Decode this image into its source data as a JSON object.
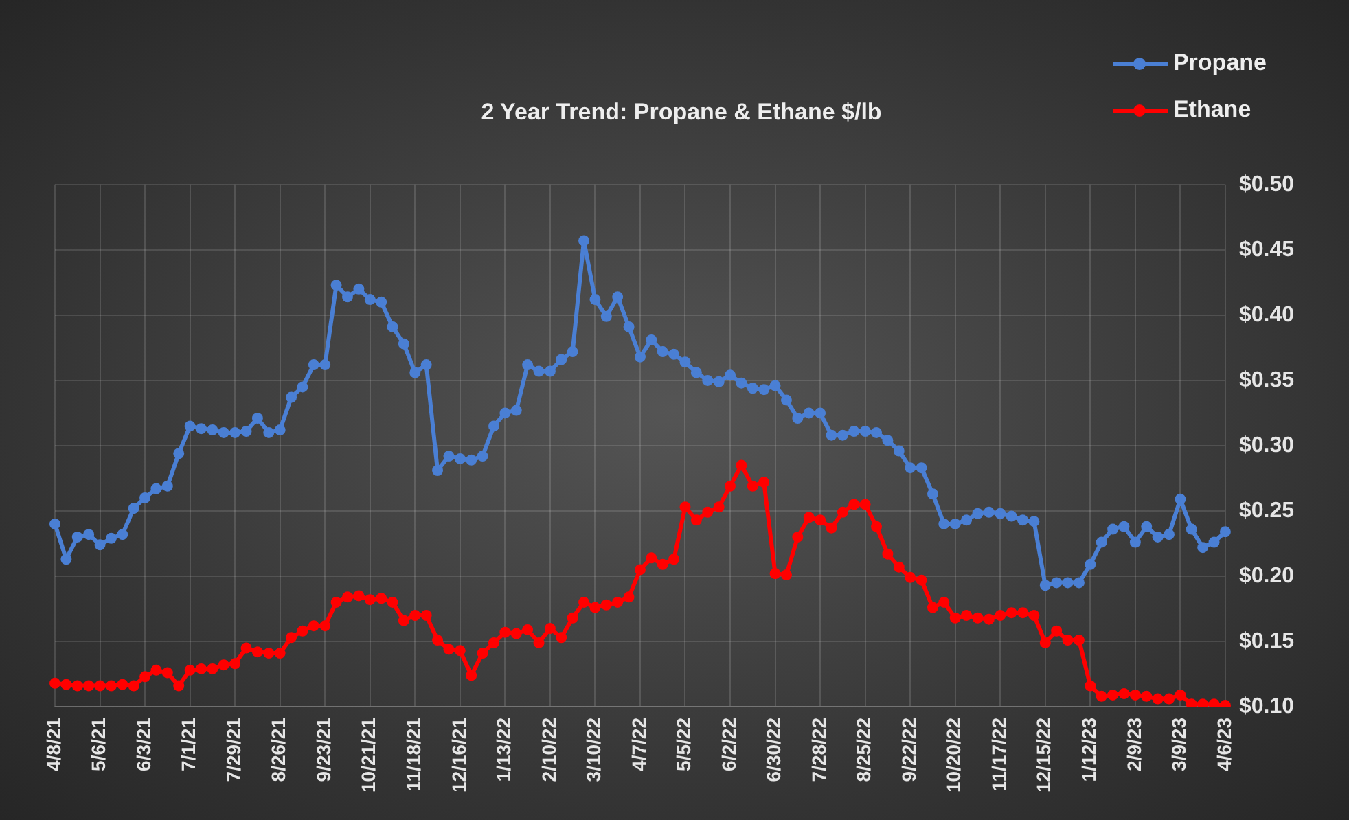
{
  "chart_data": {
    "type": "line",
    "subtitle": "2 Year Trend: Propane & Ethane $/lb",
    "categories": [
      "4/8/21",
      null,
      null,
      null,
      "5/6/21",
      null,
      null,
      null,
      "6/3/21",
      null,
      null,
      null,
      "7/1/21",
      null,
      null,
      null,
      "7/29/21",
      null,
      null,
      null,
      "8/26/21",
      null,
      null,
      null,
      "9/23/21",
      null,
      null,
      null,
      "10/21/21",
      null,
      null,
      null,
      "11/18/21",
      null,
      null,
      null,
      "12/16/21",
      null,
      null,
      null,
      "1/13/22",
      null,
      null,
      null,
      "2/10/22",
      null,
      null,
      null,
      "3/10/22",
      null,
      null,
      null,
      "4/7/22",
      null,
      null,
      null,
      "5/5/22",
      null,
      null,
      null,
      "6/2/22",
      null,
      null,
      null,
      "6/30/22",
      null,
      null,
      null,
      "7/28/22",
      null,
      null,
      null,
      "8/25/22",
      null,
      null,
      null,
      "9/22/22",
      null,
      null,
      null,
      "10/20/22",
      null,
      null,
      null,
      "11/17/22",
      null,
      null,
      null,
      "12/15/22",
      null,
      null,
      null,
      "1/12/23",
      null,
      null,
      null,
      "2/9/23",
      null,
      null,
      null,
      "3/9/23",
      null,
      null,
      null,
      "4/6/23"
    ],
    "series": [
      {
        "name": "Propane",
        "color": "#4a7fd4",
        "values": [
          0.24,
          0.213,
          0.23,
          0.232,
          0.224,
          0.229,
          0.232,
          0.252,
          0.26,
          0.267,
          0.269,
          0.294,
          0.315,
          0.313,
          0.312,
          0.31,
          0.31,
          0.311,
          0.321,
          0.31,
          0.312,
          0.337,
          0.345,
          0.362,
          0.362,
          0.423,
          0.414,
          0.42,
          0.412,
          0.41,
          0.391,
          0.378,
          0.356,
          0.362,
          0.281,
          0.292,
          0.29,
          0.289,
          0.292,
          0.315,
          0.325,
          0.327,
          0.362,
          0.357,
          0.357,
          0.366,
          0.372,
          0.457,
          0.412,
          0.399,
          0.414,
          0.391,
          0.368,
          0.381,
          0.372,
          0.37,
          0.364,
          0.356,
          0.35,
          0.349,
          0.354,
          0.348,
          0.344,
          0.343,
          0.346,
          0.335,
          0.321,
          0.325,
          0.325,
          0.308,
          0.308,
          0.311,
          0.311,
          0.31,
          0.304,
          0.296,
          0.283,
          0.283,
          0.263,
          0.24,
          0.24,
          0.243,
          0.248,
          0.249,
          0.248,
          0.246,
          0.243,
          0.242,
          0.193,
          0.195,
          0.195,
          0.195,
          0.209,
          0.226,
          0.236,
          0.238,
          0.226,
          0.238,
          0.23,
          0.232,
          0.259,
          0.236,
          0.222,
          0.226,
          0.234
        ]
      },
      {
        "name": "Ethane",
        "color": "#ff0000",
        "values": [
          0.118,
          0.117,
          0.116,
          0.116,
          0.116,
          0.116,
          0.117,
          0.116,
          0.123,
          0.128,
          0.126,
          0.116,
          0.128,
          0.129,
          0.129,
          0.132,
          0.133,
          0.145,
          0.142,
          0.141,
          0.141,
          0.153,
          0.158,
          0.162,
          0.162,
          0.18,
          0.184,
          0.185,
          0.182,
          0.183,
          0.18,
          0.166,
          0.17,
          0.17,
          0.151,
          0.144,
          0.143,
          0.124,
          0.141,
          0.149,
          0.157,
          0.156,
          0.159,
          0.149,
          0.16,
          0.153,
          0.168,
          0.18,
          0.176,
          0.178,
          0.18,
          0.184,
          0.205,
          0.214,
          0.209,
          0.213,
          0.253,
          0.243,
          0.249,
          0.253,
          0.269,
          0.285,
          0.269,
          0.272,
          0.202,
          0.201,
          0.23,
          0.245,
          0.243,
          0.237,
          0.249,
          0.255,
          0.255,
          0.238,
          0.217,
          0.207,
          0.199,
          0.197,
          0.176,
          0.18,
          0.168,
          0.17,
          0.168,
          0.167,
          0.17,
          0.172,
          0.172,
          0.17,
          0.149,
          0.158,
          0.151,
          0.151,
          0.116,
          0.108,
          0.109,
          0.11,
          0.109,
          0.108,
          0.106,
          0.106,
          0.109,
          0.102,
          0.102,
          0.102,
          0.101
        ]
      }
    ],
    "ylim": [
      0.1,
      0.5
    ],
    "yticks": [
      {
        "value": 0.1,
        "label": "$0.10"
      },
      {
        "value": 0.15,
        "label": "$0.15"
      },
      {
        "value": 0.2,
        "label": "$0.20"
      },
      {
        "value": 0.25,
        "label": "$0.25"
      },
      {
        "value": 0.3,
        "label": "$0.30"
      },
      {
        "value": 0.35,
        "label": "$0.35"
      },
      {
        "value": 0.4,
        "label": "$0.40"
      },
      {
        "value": 0.45,
        "label": "$0.45"
      },
      {
        "value": 0.5,
        "label": "$0.50"
      }
    ],
    "grid": true,
    "legend": "top right",
    "marker": "circle",
    "line_style": "solid"
  }
}
